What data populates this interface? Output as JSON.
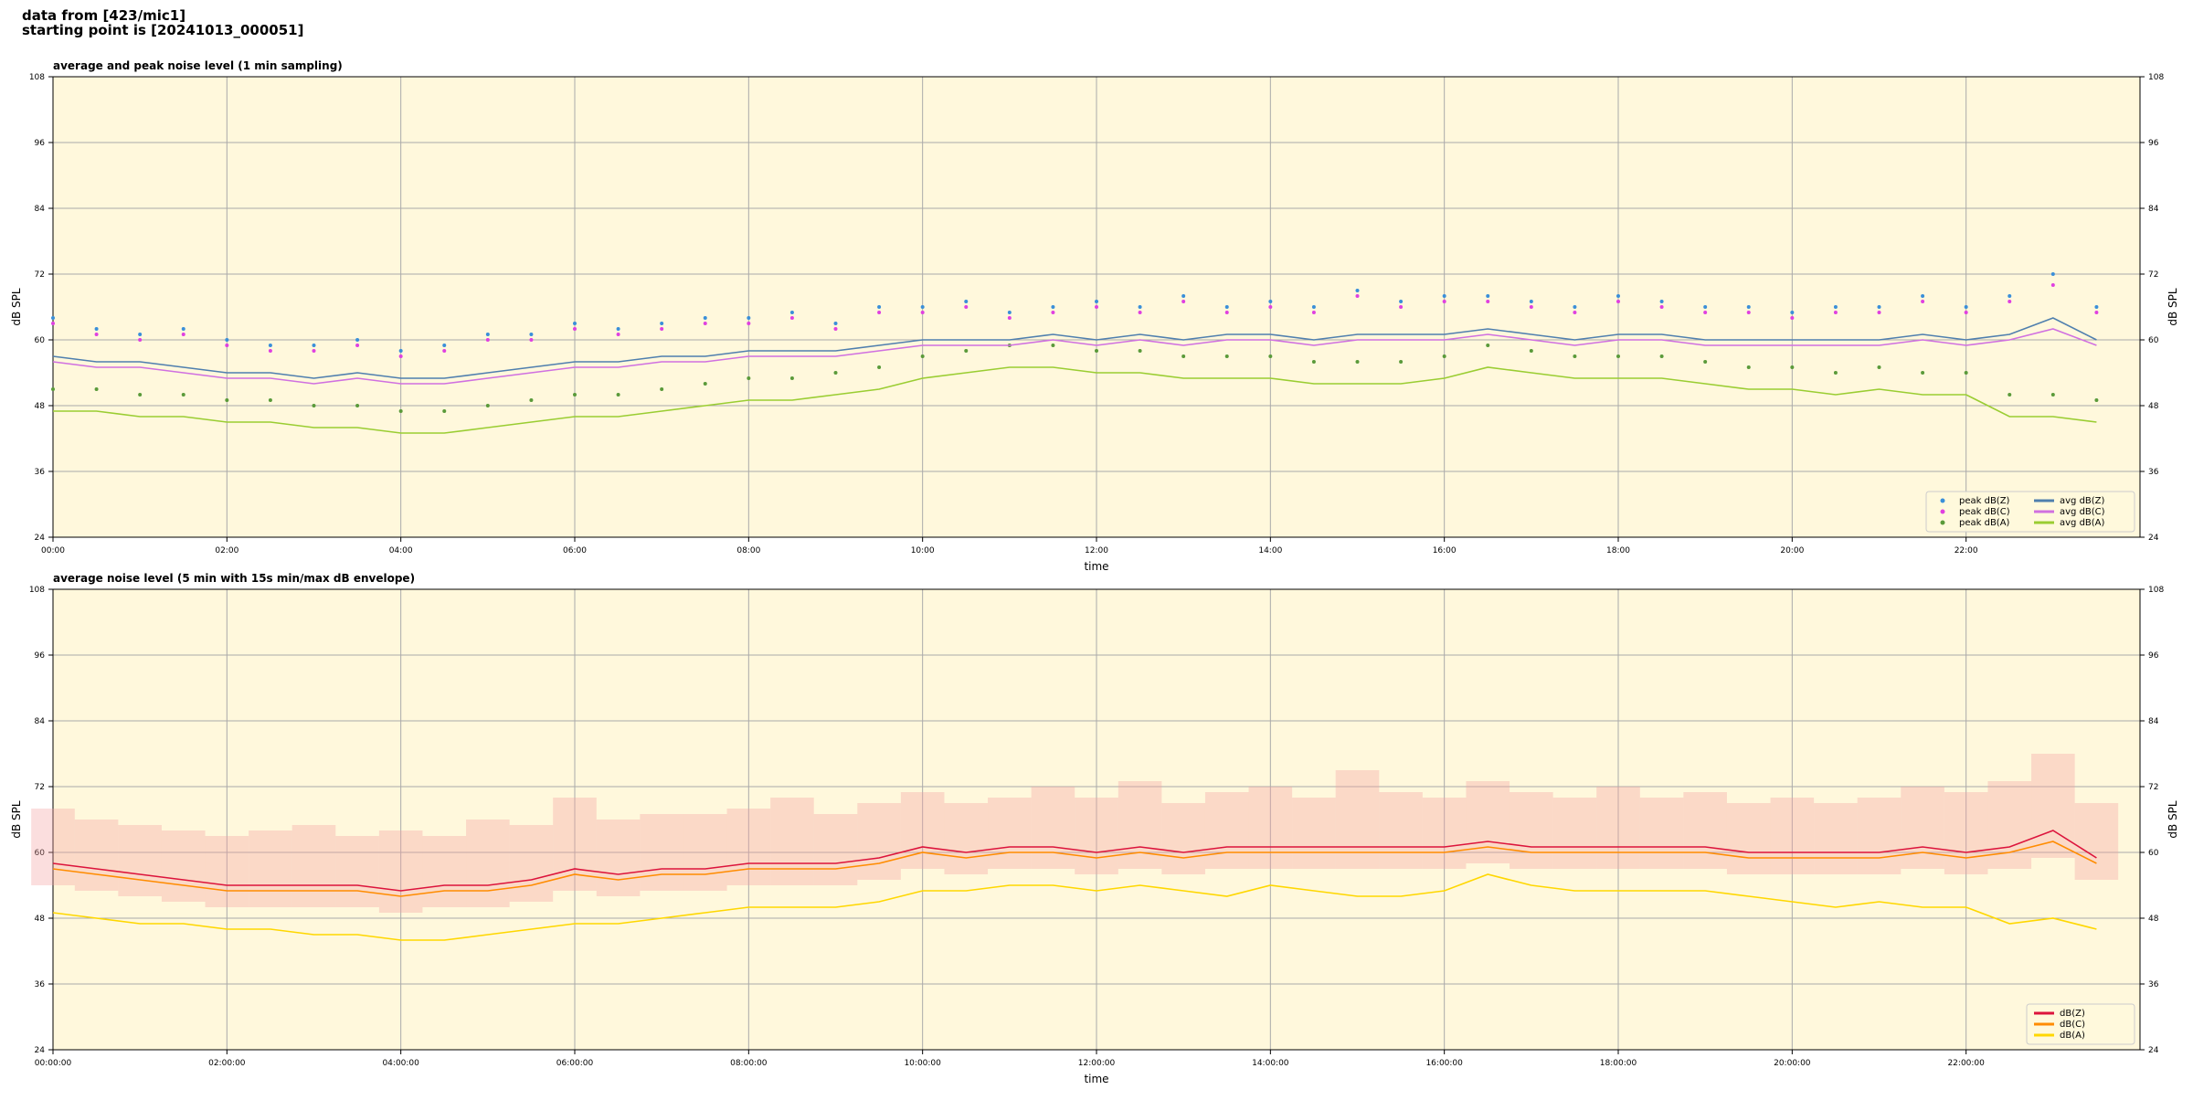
{
  "header": {
    "lines": [
      "data from [423/mic1]",
      "starting point is [20241013_000051]"
    ]
  },
  "chart_data": [
    {
      "type": "line",
      "title": "average and peak noise level (1 min sampling)",
      "xlabel": "time",
      "ylabel": "dB SPL",
      "x": [
        0,
        0.5,
        1,
        1.5,
        2,
        2.5,
        3,
        3.5,
        4,
        4.5,
        5,
        5.5,
        6,
        6.5,
        7,
        7.5,
        8,
        8.5,
        9,
        9.5,
        10,
        10.5,
        11,
        11.5,
        12,
        12.5,
        13,
        13.5,
        14,
        14.5,
        15,
        15.5,
        16,
        16.5,
        17,
        17.5,
        18,
        18.5,
        19,
        19.5,
        20,
        20.5,
        21,
        21.5,
        22,
        22.5,
        23,
        23.5
      ],
      "xlim": [
        0,
        24
      ],
      "ylim": [
        24,
        108
      ],
      "yticks": [
        24,
        36,
        48,
        60,
        72,
        84,
        96,
        108
      ],
      "xticks": [
        {
          "value": 0,
          "label": "00:00"
        },
        {
          "value": 2,
          "label": "02:00"
        },
        {
          "value": 4,
          "label": "04:00"
        },
        {
          "value": 6,
          "label": "06:00"
        },
        {
          "value": 8,
          "label": "08:00"
        },
        {
          "value": 10,
          "label": "10:00"
        },
        {
          "value": 12,
          "label": "12:00"
        },
        {
          "value": 14,
          "label": "14:00"
        },
        {
          "value": 16,
          "label": "16:00"
        },
        {
          "value": 18,
          "label": "18:00"
        },
        {
          "value": 20,
          "label": "20:00"
        },
        {
          "value": 22,
          "label": "22:00"
        }
      ],
      "grid": true,
      "legend": "lower right",
      "legend_columns": 2,
      "background": "#fff8dc",
      "series": [
        {
          "name": "peak dB(Z)",
          "kind": "points",
          "color": "#3a8fd9",
          "values": [
            64,
            62,
            61,
            62,
            60,
            59,
            59,
            60,
            58,
            59,
            61,
            61,
            63,
            62,
            63,
            64,
            64,
            65,
            63,
            66,
            66,
            67,
            65,
            66,
            67,
            66,
            68,
            66,
            67,
            66,
            69,
            67,
            68,
            68,
            67,
            66,
            68,
            67,
            66,
            66,
            65,
            66,
            66,
            68,
            66,
            68,
            72,
            66
          ]
        },
        {
          "name": "peak dB(C)",
          "kind": "points",
          "color": "#e040e0",
          "values": [
            63,
            61,
            60,
            61,
            59,
            58,
            58,
            59,
            57,
            58,
            60,
            60,
            62,
            61,
            62,
            63,
            63,
            64,
            62,
            65,
            65,
            66,
            64,
            65,
            66,
            65,
            67,
            65,
            66,
            65,
            68,
            66,
            67,
            67,
            66,
            65,
            67,
            66,
            65,
            65,
            64,
            65,
            65,
            67,
            65,
            67,
            70,
            65
          ]
        },
        {
          "name": "peak dB(A)",
          "kind": "points",
          "color": "#5a9a3a",
          "values": [
            51,
            51,
            50,
            50,
            49,
            49,
            48,
            48,
            47,
            47,
            48,
            49,
            50,
            50,
            51,
            52,
            53,
            53,
            54,
            55,
            57,
            58,
            59,
            59,
            58,
            58,
            57,
            57,
            57,
            56,
            56,
            56,
            57,
            59,
            58,
            57,
            57,
            57,
            56,
            55,
            55,
            54,
            55,
            54,
            54,
            50,
            50,
            49
          ]
        },
        {
          "name": "avg dB(Z)",
          "kind": "line",
          "color": "#4f7fae",
          "values": [
            57,
            56,
            56,
            55,
            54,
            54,
            53,
            54,
            53,
            53,
            54,
            55,
            56,
            56,
            57,
            57,
            58,
            58,
            58,
            59,
            60,
            60,
            60,
            61,
            60,
            61,
            60,
            61,
            61,
            60,
            61,
            61,
            61,
            62,
            61,
            60,
            61,
            61,
            60,
            60,
            60,
            60,
            60,
            61,
            60,
            61,
            64,
            60
          ]
        },
        {
          "name": "avg dB(C)",
          "kind": "line",
          "color": "#d070e0",
          "values": [
            56,
            55,
            55,
            54,
            53,
            53,
            52,
            53,
            52,
            52,
            53,
            54,
            55,
            55,
            56,
            56,
            57,
            57,
            57,
            58,
            59,
            59,
            59,
            60,
            59,
            60,
            59,
            60,
            60,
            59,
            60,
            60,
            60,
            61,
            60,
            59,
            60,
            60,
            59,
            59,
            59,
            59,
            59,
            60,
            59,
            60,
            62,
            59
          ]
        },
        {
          "name": "avg dB(A)",
          "kind": "line",
          "color": "#9acd32",
          "values": [
            47,
            47,
            46,
            46,
            45,
            45,
            44,
            44,
            43,
            43,
            44,
            45,
            46,
            46,
            47,
            48,
            49,
            49,
            50,
            51,
            53,
            54,
            55,
            55,
            54,
            54,
            53,
            53,
            53,
            52,
            52,
            52,
            53,
            55,
            54,
            53,
            53,
            53,
            52,
            51,
            51,
            50,
            51,
            50,
            50,
            46,
            46,
            45
          ]
        }
      ]
    },
    {
      "type": "line",
      "title": "average noise level (5 min with 15s min/max dB envelope)",
      "xlabel": "time",
      "ylabel": "dB SPL",
      "x": [
        0,
        0.5,
        1,
        1.5,
        2,
        2.5,
        3,
        3.5,
        4,
        4.5,
        5,
        5.5,
        6,
        6.5,
        7,
        7.5,
        8,
        8.5,
        9,
        9.5,
        10,
        10.5,
        11,
        11.5,
        12,
        12.5,
        13,
        13.5,
        14,
        14.5,
        15,
        15.5,
        16,
        16.5,
        17,
        17.5,
        18,
        18.5,
        19,
        19.5,
        20,
        20.5,
        21,
        21.5,
        22,
        22.5,
        23,
        23.5
      ],
      "xlim": [
        0,
        24
      ],
      "ylim": [
        24,
        108
      ],
      "yticks": [
        24,
        36,
        48,
        60,
        72,
        84,
        96,
        108
      ],
      "xticks": [
        {
          "value": 0,
          "label": "00:00:00"
        },
        {
          "value": 2,
          "label": "02:00:00"
        },
        {
          "value": 4,
          "label": "04:00:00"
        },
        {
          "value": 6,
          "label": "06:00:00"
        },
        {
          "value": 8,
          "label": "08:00:00"
        },
        {
          "value": 10,
          "label": "10:00:00"
        },
        {
          "value": 12,
          "label": "12:00:00"
        },
        {
          "value": 14,
          "label": "14:00:00"
        },
        {
          "value": 16,
          "label": "16:00:00"
        },
        {
          "value": 18,
          "label": "18:00:00"
        },
        {
          "value": 20,
          "label": "20:00:00"
        },
        {
          "value": 22,
          "label": "22:00:00"
        }
      ],
      "grid": true,
      "legend": "lower right",
      "legend_columns": 1,
      "background": "#fff8dc",
      "envelope_color": "#f4a0a0",
      "series": [
        {
          "name": "dB(Z)",
          "kind": "line",
          "color": "#dc143c",
          "values": [
            58,
            57,
            56,
            55,
            54,
            54,
            54,
            54,
            53,
            54,
            54,
            55,
            57,
            56,
            57,
            57,
            58,
            58,
            58,
            59,
            61,
            60,
            61,
            61,
            60,
            61,
            60,
            61,
            61,
            61,
            61,
            61,
            61,
            62,
            61,
            61,
            61,
            61,
            61,
            60,
            60,
            60,
            60,
            61,
            60,
            61,
            64,
            59
          ],
          "min": [
            54,
            53,
            52,
            51,
            50,
            50,
            50,
            50,
            49,
            50,
            50,
            51,
            53,
            52,
            53,
            53,
            54,
            54,
            54,
            55,
            57,
            56,
            57,
            57,
            56,
            57,
            56,
            57,
            57,
            57,
            57,
            57,
            57,
            58,
            57,
            57,
            57,
            57,
            57,
            56,
            56,
            56,
            56,
            57,
            56,
            57,
            59,
            55
          ],
          "max": [
            68,
            66,
            65,
            64,
            63,
            64,
            65,
            63,
            64,
            63,
            66,
            65,
            70,
            66,
            67,
            67,
            68,
            70,
            67,
            69,
            71,
            69,
            70,
            72,
            70,
            73,
            69,
            71,
            72,
            70,
            75,
            71,
            70,
            73,
            71,
            70,
            72,
            70,
            71,
            69,
            70,
            69,
            70,
            72,
            71,
            73,
            78,
            69
          ]
        },
        {
          "name": "dB(C)",
          "kind": "line",
          "color": "#ff8c00",
          "values": [
            57,
            56,
            55,
            54,
            53,
            53,
            53,
            53,
            52,
            53,
            53,
            54,
            56,
            55,
            56,
            56,
            57,
            57,
            57,
            58,
            60,
            59,
            60,
            60,
            59,
            60,
            59,
            60,
            60,
            60,
            60,
            60,
            60,
            61,
            60,
            60,
            60,
            60,
            60,
            59,
            59,
            59,
            59,
            60,
            59,
            60,
            62,
            58
          ]
        },
        {
          "name": "dB(A)",
          "kind": "line",
          "color": "#ffd700",
          "values": [
            49,
            48,
            47,
            47,
            46,
            46,
            45,
            45,
            44,
            44,
            45,
            46,
            47,
            47,
            48,
            49,
            50,
            50,
            50,
            51,
            53,
            53,
            54,
            54,
            53,
            54,
            53,
            52,
            54,
            53,
            52,
            52,
            53,
            56,
            54,
            53,
            53,
            53,
            53,
            52,
            51,
            50,
            51,
            50,
            50,
            47,
            48,
            46
          ]
        }
      ]
    }
  ]
}
